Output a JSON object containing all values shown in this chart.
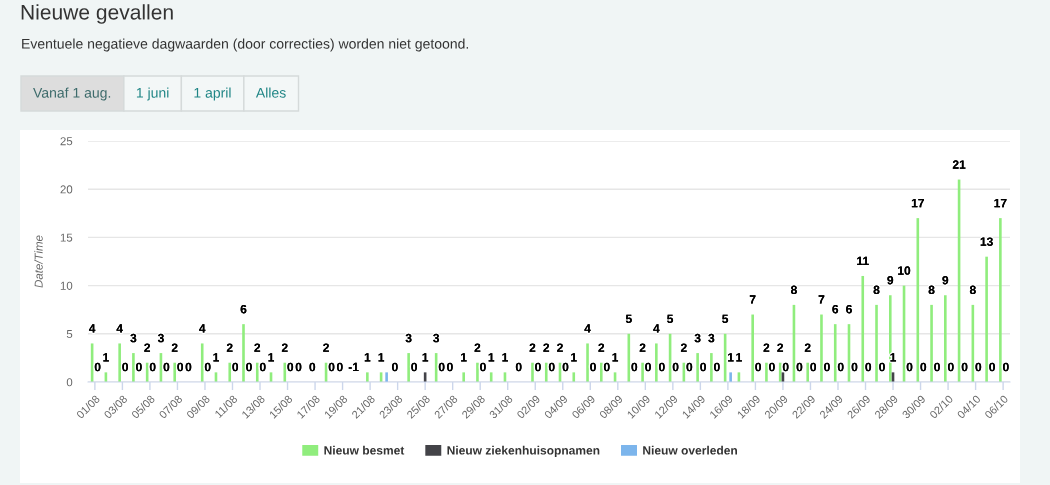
{
  "chart_data": {
    "type": "bar",
    "title": "Nieuwe gevallen",
    "subtitle": "Eventuele negatieve dagwaarden (door correcties) worden niet getoond.",
    "ylabel": "Date/Time",
    "annotations": [
      "Vanaf 1 aug.",
      "1 juni",
      "1 april",
      "Alles"
    ],
    "categories": [
      "01/08",
      null,
      "03/08",
      null,
      "05/08",
      null,
      "07/08",
      null,
      "09/08",
      null,
      "11/08",
      null,
      "13/08",
      null,
      "15/08",
      null,
      "17/08",
      null,
      "19/08",
      null,
      "21/08",
      null,
      "23/08",
      null,
      "25/08",
      null,
      "27/08",
      null,
      "29/08",
      null,
      "31/08",
      null,
      "02/09",
      null,
      "04/09",
      null,
      "06/09",
      null,
      "08/09",
      null,
      "10/09",
      null,
      "12/09",
      null,
      "14/09",
      null,
      "16/09",
      null,
      "18/09",
      null,
      "20/09",
      null,
      "22/09",
      null,
      "24/09",
      null,
      "26/09",
      null,
      "28/09",
      null,
      "30/09",
      null,
      "02/10",
      null,
      "04/10",
      null,
      "06/10"
    ],
    "series": [
      {
        "name": "Nieuw besmet",
        "color": "#90ed7d",
        "values": [
          4,
          1,
          4,
          3,
          2,
          3,
          2,
          0,
          4,
          1,
          2,
          6,
          2,
          1,
          2,
          0,
          0,
          2,
          0,
          null,
          1,
          1,
          0,
          3,
          0,
          3,
          0,
          1,
          2,
          1,
          1,
          0,
          2,
          2,
          2,
          1,
          4,
          2,
          1,
          5,
          2,
          4,
          5,
          2,
          3,
          3,
          5,
          1,
          7,
          2,
          2,
          8,
          2,
          7,
          6,
          6,
          11,
          8,
          9,
          10,
          17,
          8,
          9,
          21,
          8,
          13,
          17
        ],
        "value_labels": [
          "4",
          "1",
          "4",
          "3",
          "2",
          "3",
          "2",
          "0",
          "4",
          "1",
          "2",
          "6",
          "2",
          "1",
          "2",
          "0",
          "0",
          "2",
          "0",
          "-1",
          "1",
          "1",
          "0",
          "3",
          null,
          "3",
          "0",
          "1",
          "2",
          "1",
          "1",
          "0",
          "2",
          "2",
          "2",
          "1",
          "4",
          "2",
          "1",
          "5",
          "2",
          "4",
          "5",
          "2",
          "3",
          "3",
          "5",
          "1",
          "7",
          "2",
          "2",
          "8",
          "2",
          "7",
          "6",
          "6",
          "11",
          "8",
          "9",
          "10",
          "17",
          "8",
          "9",
          "21",
          "8",
          "13",
          "17"
        ]
      },
      {
        "name": "Nieuw ziekenhuisopnamen",
        "color": "#434348",
        "values": [
          0,
          0,
          0,
          0,
          0,
          0,
          0,
          0,
          0,
          0,
          0,
          0,
          0,
          0,
          0,
          0,
          0,
          0,
          0,
          0,
          0,
          0,
          0,
          0,
          1,
          0,
          0,
          0,
          0,
          0,
          0,
          0,
          0,
          0,
          0,
          0,
          0,
          0,
          0,
          0,
          0,
          0,
          0,
          0,
          0,
          0,
          0,
          0,
          0,
          0,
          1,
          0,
          0,
          0,
          0,
          0,
          0,
          0,
          1,
          0,
          0,
          0,
          0,
          0,
          0,
          0,
          0
        ],
        "value_labels": [
          null,
          null,
          null,
          null,
          null,
          null,
          null,
          null,
          null,
          null,
          null,
          null,
          null,
          null,
          null,
          null,
          null,
          null,
          null,
          null,
          null,
          null,
          null,
          null,
          "1",
          null,
          null,
          null,
          null,
          null,
          null,
          null,
          null,
          null,
          null,
          null,
          null,
          null,
          null,
          null,
          null,
          null,
          null,
          null,
          null,
          null,
          null,
          null,
          null,
          null,
          null,
          null,
          null,
          null,
          null,
          null,
          null,
          null,
          "1",
          null,
          null,
          null,
          null,
          null,
          null,
          null,
          null
        ]
      },
      {
        "name": "Nieuw overleden",
        "color": "#7cb5ec",
        "values": [
          0,
          0,
          0,
          0,
          0,
          0,
          0,
          0,
          0,
          0,
          0,
          0,
          0,
          0,
          0,
          0,
          0,
          0,
          0,
          0,
          0,
          1,
          0,
          0,
          0,
          0,
          0,
          0,
          0,
          0,
          0,
          0,
          0,
          0,
          0,
          0,
          0,
          0,
          0,
          0,
          0,
          0,
          0,
          0,
          0,
          0,
          1,
          0,
          0,
          0,
          0,
          0,
          0,
          0,
          0,
          0,
          0,
          0,
          0,
          0,
          0,
          0,
          0,
          0,
          0,
          0,
          0
        ],
        "value_labels": [
          "0",
          null,
          "0",
          "0",
          "0",
          "0",
          "0",
          null,
          "0",
          null,
          "0",
          "0",
          "0",
          null,
          "0",
          null,
          null,
          "0",
          null,
          null,
          null,
          null,
          null,
          "0",
          null,
          "0",
          null,
          null,
          "0",
          null,
          null,
          null,
          "0",
          "0",
          "0",
          null,
          "0",
          "0",
          null,
          "0",
          "0",
          "0",
          "0",
          "0",
          "0",
          "0",
          "1",
          null,
          "0",
          "0",
          "0",
          "0",
          "0",
          "0",
          "0",
          "0",
          "0",
          "0",
          null,
          "0",
          "0",
          "0",
          "0",
          "0",
          "0",
          "0",
          "0"
        ]
      }
    ],
    "ylim": [
      0,
      25
    ],
    "yticks": [
      0,
      5,
      10,
      15,
      20,
      25
    ],
    "grid": "y",
    "legend": "bottom"
  }
}
